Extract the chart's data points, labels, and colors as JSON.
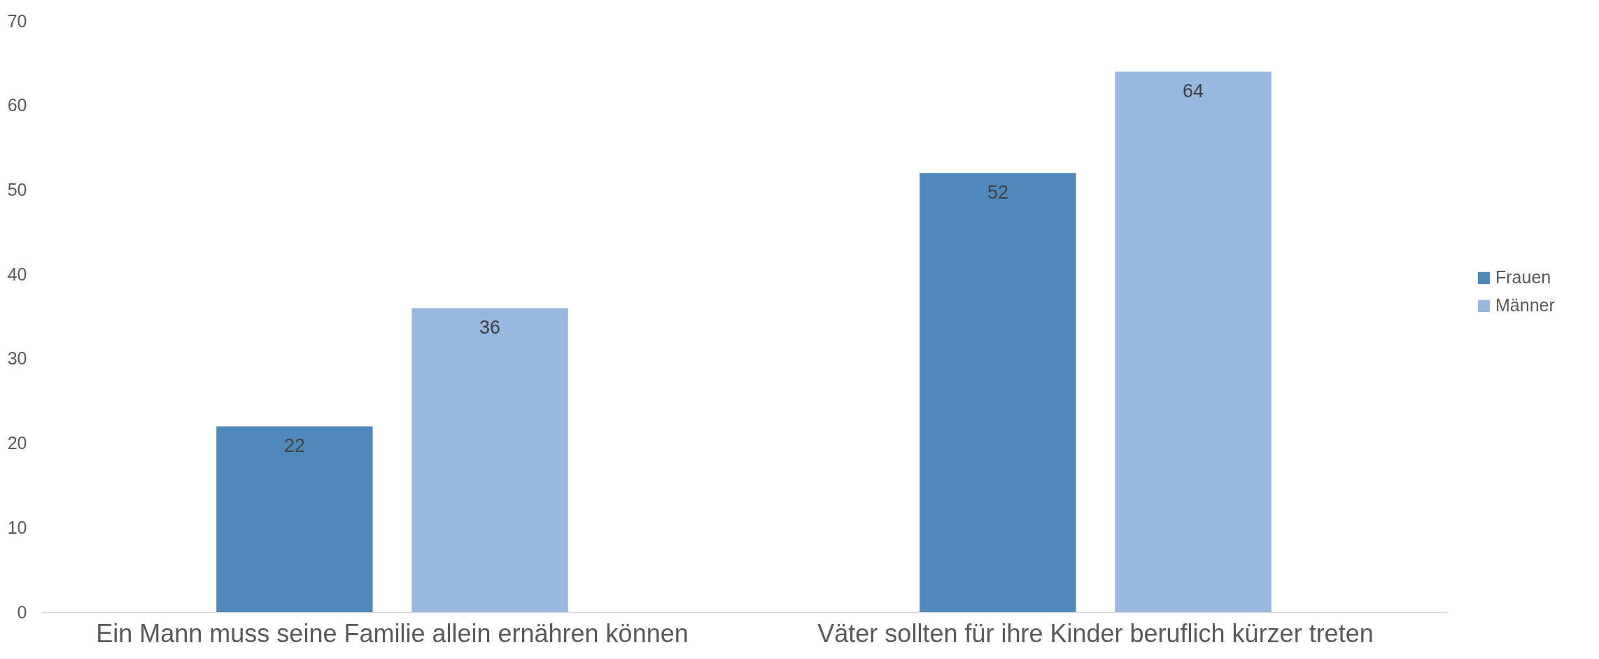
{
  "chart_data": {
    "type": "bar",
    "categories": [
      "Ein Mann muss seine Familie allein ernähren können",
      "Väter sollten für ihre Kinder beruflich kürzer treten"
    ],
    "series": [
      {
        "name": "Frauen",
        "color": "#4f88bb",
        "values": [
          22,
          52
        ]
      },
      {
        "name": "Männer",
        "color": "#97b8df",
        "values": [
          36,
          64
        ]
      }
    ],
    "ylim": [
      0,
      70
    ],
    "yticks": [
      0,
      10,
      20,
      30,
      40,
      50,
      60,
      70
    ],
    "grid": false,
    "legend": "right",
    "data_labels": true
  }
}
